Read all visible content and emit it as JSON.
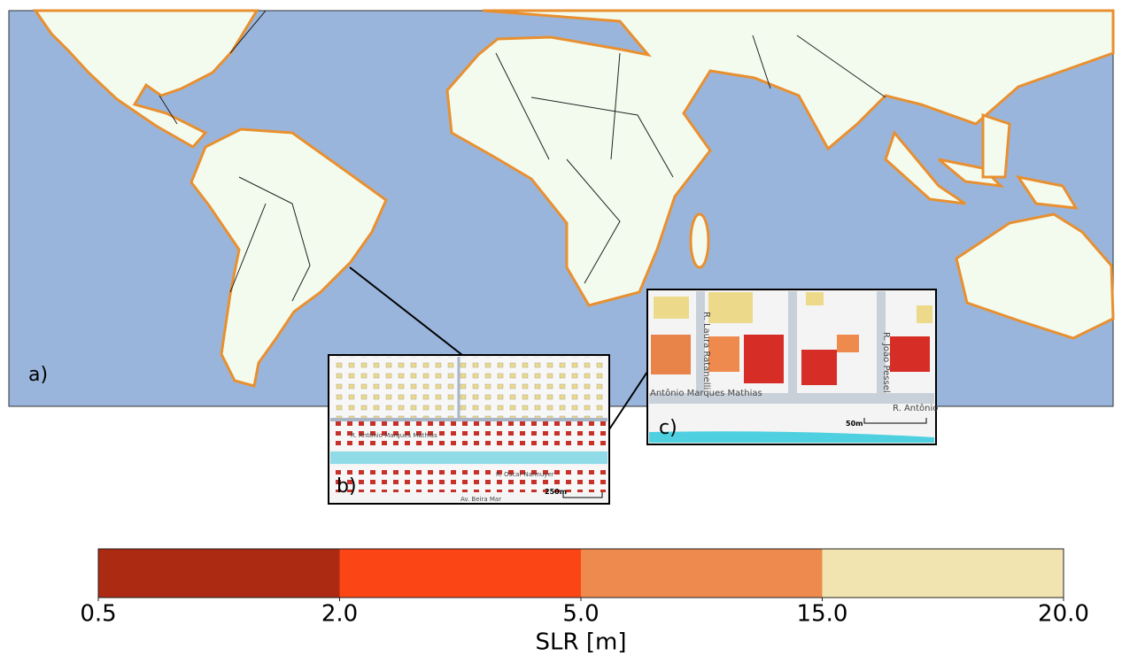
{
  "map": {
    "panel_labels": [
      "a)",
      "b)",
      "c)"
    ],
    "inset_b": {
      "scale": "250m",
      "streets": [
        "R. Antônio Marques Mathias",
        "Av. Beira Mar",
        "R. Oscar Nannuyer"
      ]
    },
    "inset_c": {
      "scale": "50m",
      "streets": [
        "R. Laura Ratanelli",
        "R. João Pessel",
        "R. Antônio",
        "Antônio Marques Mathias"
      ]
    }
  },
  "colorbar": {
    "label": "SLR [m]",
    "colors": [
      "#ad2a12",
      "#fb4514",
      "#ee8a4d",
      "#f2e4b0"
    ],
    "ticks": [
      0.5,
      {
        "value": 2,
        "label": "2.0"
      },
      {
        "value": 5,
        "label": "5.0"
      },
      {
        "value": 15,
        "label": "15.0"
      },
      {
        "value": 20,
        "label": "20.0"
      }
    ]
  }
}
